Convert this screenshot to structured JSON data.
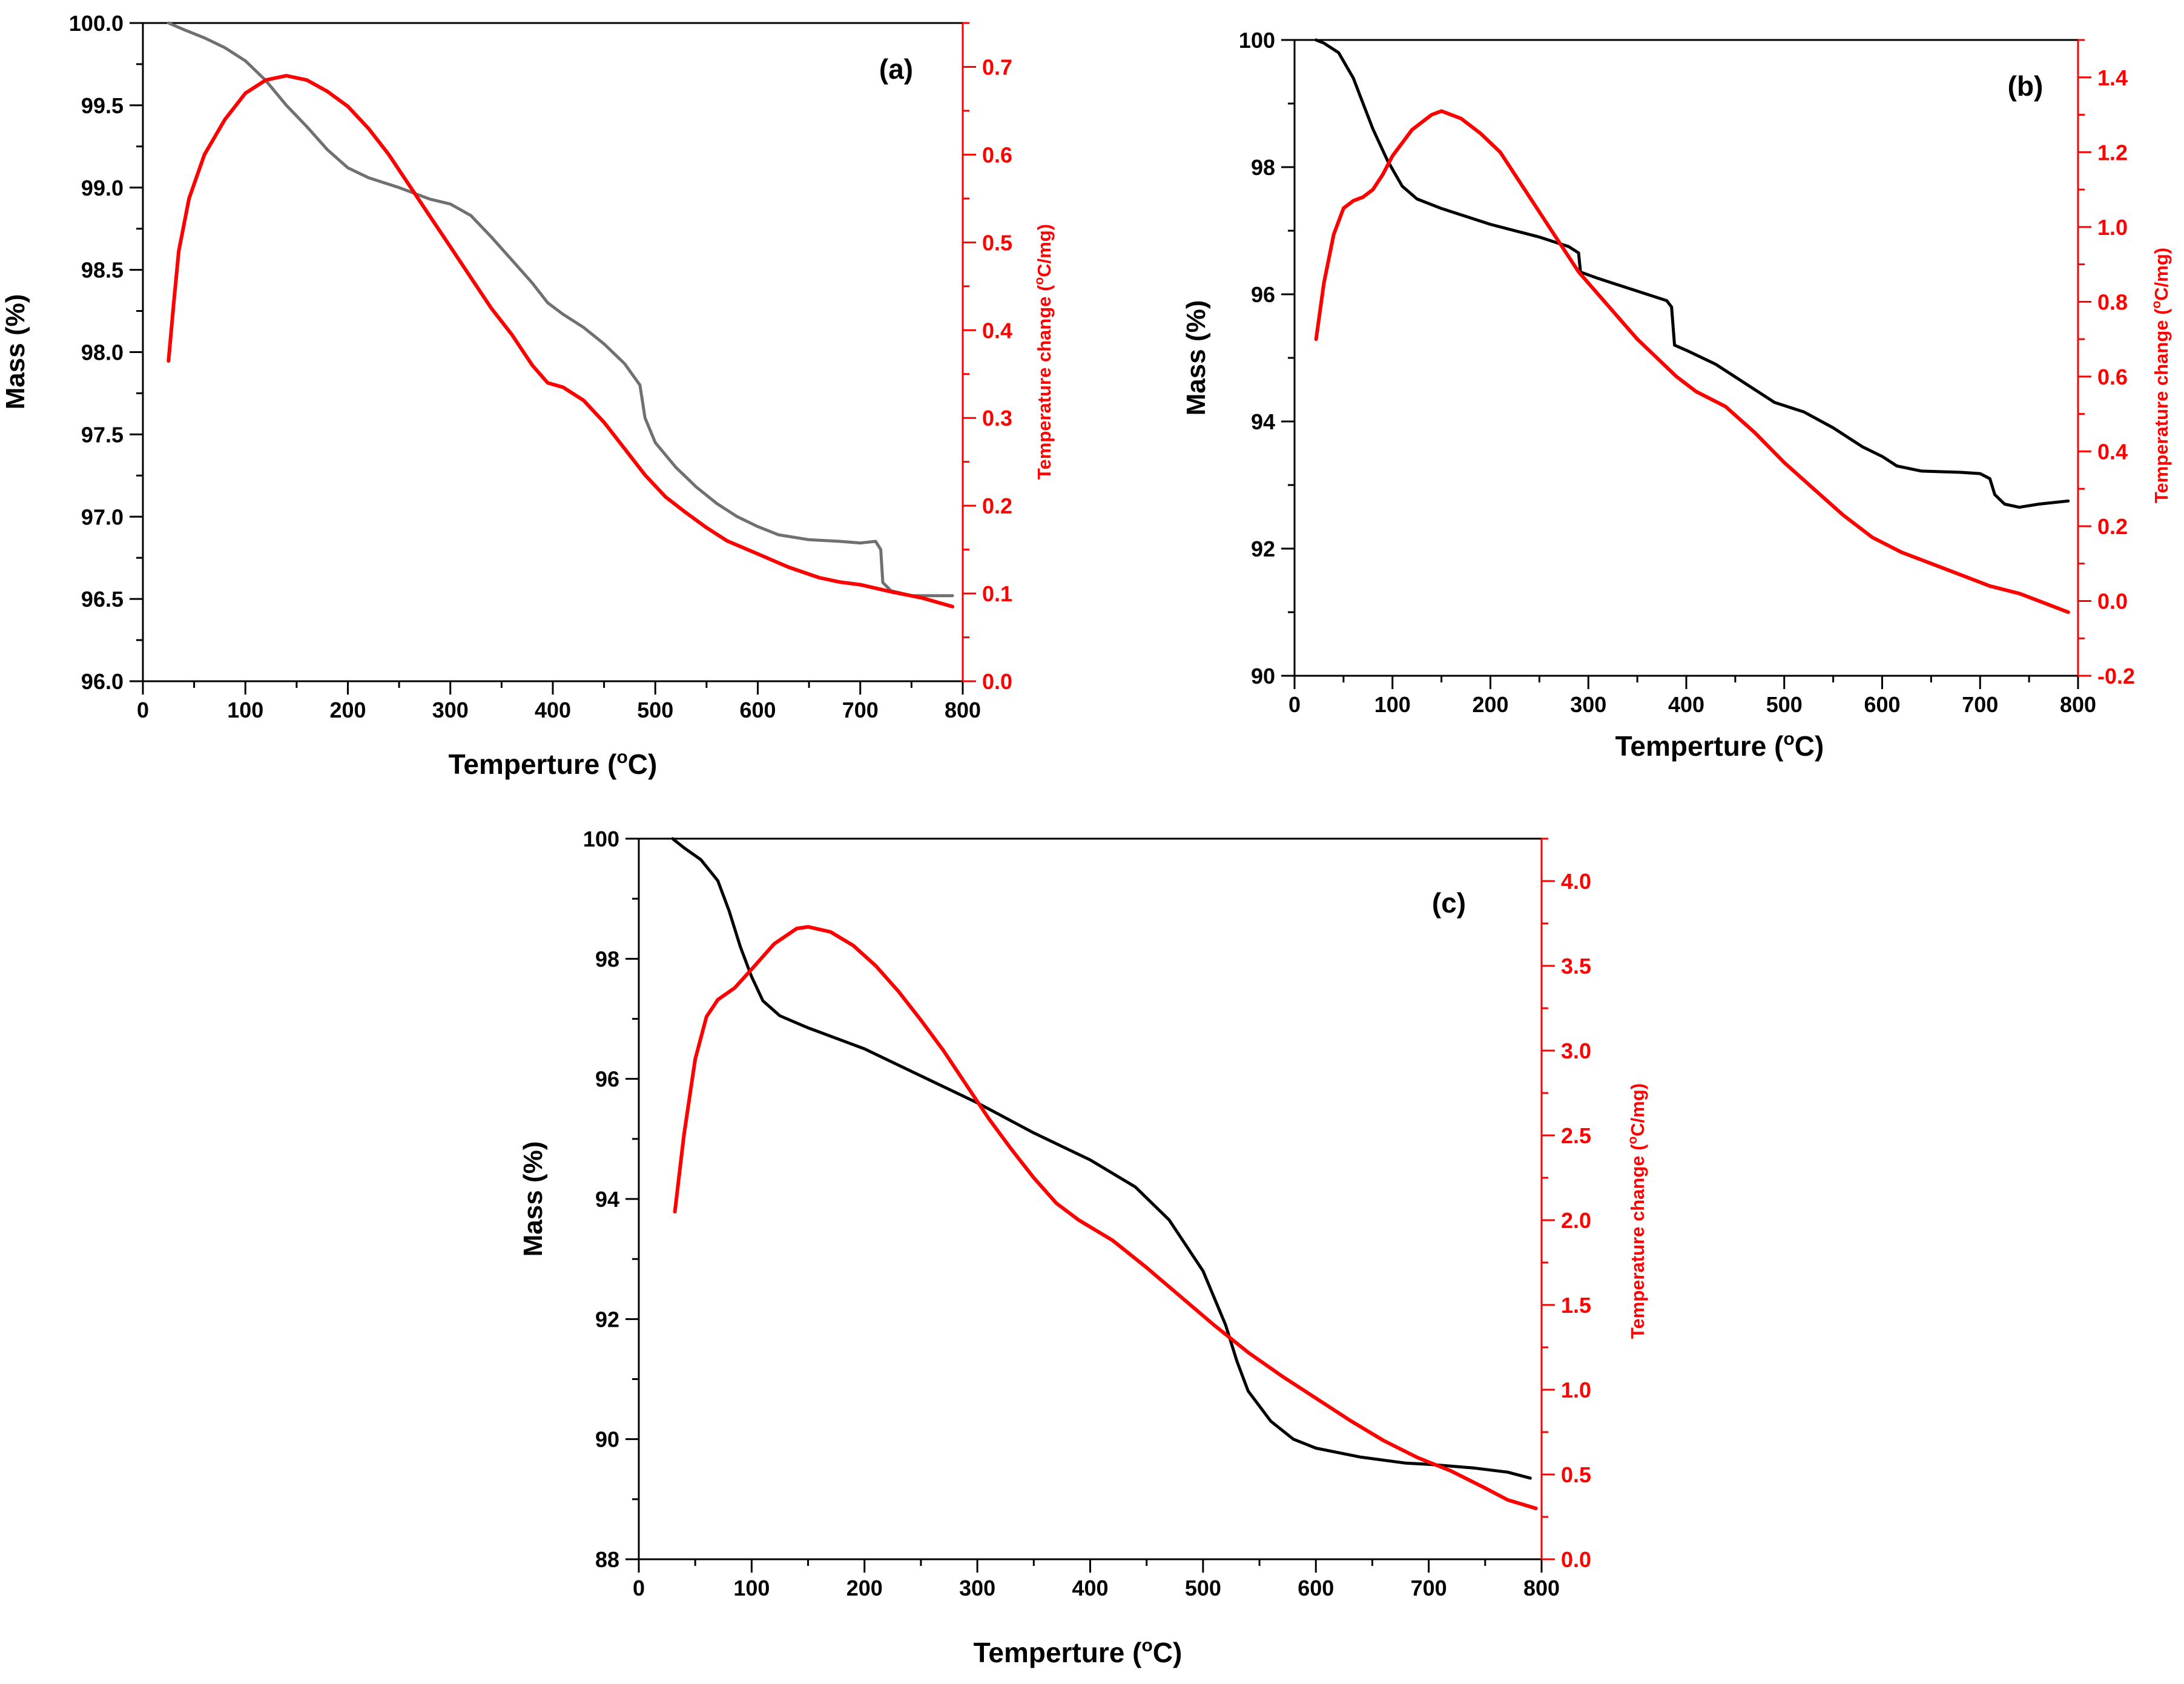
{
  "figure": {
    "title": ""
  },
  "chart_data": [
    {
      "type": "line",
      "panel_label": "(a)",
      "title": "",
      "xlabel": "Temperture (",
      "xlabel_sup": "o",
      "xlabel_end": "C)",
      "ylabel": "Mass (%)",
      "y2label": "Temperature change (",
      "y2label_sup": "o",
      "y2label_end": "C/mg)",
      "xlim": [
        0,
        800
      ],
      "ylim": [
        96.0,
        100.0
      ],
      "y2lim": [
        0.0,
        0.75
      ],
      "x_ticks": [
        "0",
        "100",
        "200",
        "300",
        "400",
        "500",
        "600",
        "700",
        "800"
      ],
      "y_ticks": [
        "96.0",
        "96.5",
        "97.0",
        "97.5",
        "98.0",
        "98.5",
        "99.0",
        "99.5",
        "100.0"
      ],
      "y2_ticks": [
        "0.0",
        "0.1",
        "0.2",
        "0.3",
        "0.4",
        "0.5",
        "0.6",
        "0.7"
      ],
      "grid": false,
      "series": [
        {
          "name": "Mass (%)",
          "axis": "left",
          "color": "#707070",
          "points": [
            [
              25,
              100.0
            ],
            [
              40,
              99.96
            ],
            [
              60,
              99.91
            ],
            [
              80,
              99.85
            ],
            [
              100,
              99.77
            ],
            [
              120,
              99.65
            ],
            [
              140,
              99.5
            ],
            [
              160,
              99.37
            ],
            [
              180,
              99.23
            ],
            [
              200,
              99.12
            ],
            [
              220,
              99.06
            ],
            [
              250,
              99.0
            ],
            [
              280,
              98.93
            ],
            [
              300,
              98.9
            ],
            [
              320,
              98.83
            ],
            [
              340,
              98.7
            ],
            [
              360,
              98.56
            ],
            [
              380,
              98.42
            ],
            [
              395,
              98.3
            ],
            [
              410,
              98.23
            ],
            [
              430,
              98.15
            ],
            [
              450,
              98.05
            ],
            [
              470,
              97.93
            ],
            [
              485,
              97.8
            ],
            [
              490,
              97.6
            ],
            [
              500,
              97.45
            ],
            [
              520,
              97.3
            ],
            [
              540,
              97.18
            ],
            [
              560,
              97.08
            ],
            [
              580,
              97.0
            ],
            [
              600,
              96.94
            ],
            [
              620,
              96.89
            ],
            [
              650,
              96.86
            ],
            [
              680,
              96.85
            ],
            [
              700,
              96.84
            ],
            [
              715,
              96.85
            ],
            [
              720,
              96.8
            ],
            [
              722,
              96.6
            ],
            [
              730,
              96.55
            ],
            [
              750,
              96.52
            ],
            [
              770,
              96.52
            ],
            [
              790,
              96.52
            ]
          ]
        },
        {
          "name": "Temperature change (oC/mg)",
          "axis": "right",
          "color": "#ff0000",
          "points": [
            [
              25,
              0.365
            ],
            [
              30,
              0.43
            ],
            [
              35,
              0.49
            ],
            [
              45,
              0.55
            ],
            [
              60,
              0.6
            ],
            [
              80,
              0.64
            ],
            [
              100,
              0.67
            ],
            [
              120,
              0.685
            ],
            [
              140,
              0.69
            ],
            [
              160,
              0.685
            ],
            [
              180,
              0.672
            ],
            [
              200,
              0.655
            ],
            [
              220,
              0.63
            ],
            [
              240,
              0.6
            ],
            [
              260,
              0.565
            ],
            [
              280,
              0.53
            ],
            [
              300,
              0.495
            ],
            [
              320,
              0.46
            ],
            [
              340,
              0.425
            ],
            [
              360,
              0.395
            ],
            [
              380,
              0.36
            ],
            [
              395,
              0.34
            ],
            [
              410,
              0.335
            ],
            [
              430,
              0.32
            ],
            [
              450,
              0.295
            ],
            [
              470,
              0.265
            ],
            [
              490,
              0.235
            ],
            [
              510,
              0.21
            ],
            [
              530,
              0.192
            ],
            [
              550,
              0.175
            ],
            [
              570,
              0.16
            ],
            [
              600,
              0.145
            ],
            [
              630,
              0.13
            ],
            [
              660,
              0.118
            ],
            [
              680,
              0.113
            ],
            [
              700,
              0.11
            ],
            [
              730,
              0.102
            ],
            [
              760,
              0.095
            ],
            [
              790,
              0.085
            ]
          ]
        }
      ]
    },
    {
      "type": "line",
      "panel_label": "(b)",
      "title": "",
      "xlabel": "Temperture (",
      "xlabel_sup": "o",
      "xlabel_end": "C)",
      "ylabel": "Mass (%)",
      "y2label": "Temperature change (",
      "y2label_sup": "o",
      "y2label_end": "C/mg)",
      "xlim": [
        0,
        800
      ],
      "ylim": [
        90,
        100
      ],
      "y2lim": [
        -0.2,
        1.5
      ],
      "x_ticks": [
        "0",
        "100",
        "200",
        "300",
        "400",
        "500",
        "600",
        "700",
        "800"
      ],
      "y_ticks": [
        "90",
        "92",
        "94",
        "96",
        "98",
        "100"
      ],
      "y2_ticks": [
        "-0.2",
        "0.0",
        "0.2",
        "0.4",
        "0.6",
        "0.8",
        "1.0",
        "1.2",
        "1.4"
      ],
      "grid": false,
      "series": [
        {
          "name": "Mass (%)",
          "axis": "left",
          "color": "#000000",
          "points": [
            [
              22,
              100.0
            ],
            [
              30,
              99.95
            ],
            [
              45,
              99.8
            ],
            [
              60,
              99.4
            ],
            [
              70,
              99.0
            ],
            [
              80,
              98.6
            ],
            [
              95,
              98.1
            ],
            [
              110,
              97.7
            ],
            [
              125,
              97.5
            ],
            [
              150,
              97.35
            ],
            [
              200,
              97.1
            ],
            [
              250,
              96.9
            ],
            [
              280,
              96.75
            ],
            [
              290,
              96.65
            ],
            [
              292,
              96.35
            ],
            [
              310,
              96.25
            ],
            [
              350,
              96.05
            ],
            [
              380,
              95.9
            ],
            [
              385,
              95.8
            ],
            [
              388,
              95.2
            ],
            [
              400,
              95.12
            ],
            [
              430,
              94.9
            ],
            [
              460,
              94.6
            ],
            [
              490,
              94.3
            ],
            [
              520,
              94.15
            ],
            [
              550,
              93.9
            ],
            [
              580,
              93.6
            ],
            [
              600,
              93.45
            ],
            [
              615,
              93.3
            ],
            [
              640,
              93.22
            ],
            [
              680,
              93.2
            ],
            [
              700,
              93.18
            ],
            [
              710,
              93.1
            ],
            [
              715,
              92.85
            ],
            [
              725,
              92.7
            ],
            [
              740,
              92.65
            ],
            [
              760,
              92.7
            ],
            [
              790,
              92.75
            ]
          ]
        },
        {
          "name": "Temperature change (oC/mg)",
          "axis": "right",
          "color": "#ff0000",
          "points": [
            [
              22,
              0.7
            ],
            [
              30,
              0.85
            ],
            [
              40,
              0.98
            ],
            [
              50,
              1.05
            ],
            [
              60,
              1.07
            ],
            [
              70,
              1.08
            ],
            [
              80,
              1.1
            ],
            [
              90,
              1.14
            ],
            [
              100,
              1.19
            ],
            [
              120,
              1.26
            ],
            [
              140,
              1.3
            ],
            [
              150,
              1.31
            ],
            [
              170,
              1.29
            ],
            [
              190,
              1.25
            ],
            [
              210,
              1.2
            ],
            [
              230,
              1.12
            ],
            [
              250,
              1.04
            ],
            [
              270,
              0.96
            ],
            [
              290,
              0.88
            ],
            [
              310,
              0.82
            ],
            [
              330,
              0.76
            ],
            [
              350,
              0.7
            ],
            [
              370,
              0.65
            ],
            [
              390,
              0.6
            ],
            [
              410,
              0.56
            ],
            [
              440,
              0.52
            ],
            [
              470,
              0.45
            ],
            [
              500,
              0.37
            ],
            [
              530,
              0.3
            ],
            [
              560,
              0.23
            ],
            [
              590,
              0.17
            ],
            [
              620,
              0.13
            ],
            [
              650,
              0.1
            ],
            [
              680,
              0.07
            ],
            [
              710,
              0.04
            ],
            [
              740,
              0.02
            ],
            [
              770,
              -0.01
            ],
            [
              790,
              -0.03
            ]
          ]
        }
      ]
    },
    {
      "type": "line",
      "panel_label": "(c)",
      "title": "",
      "xlabel": "Temperture (",
      "xlabel_sup": "o",
      "xlabel_end": "C)",
      "ylabel": "Mass (%)",
      "y2label": "Temperature change (",
      "y2label_sup": "o",
      "y2label_end": "C/mg)",
      "xlim": [
        0,
        800
      ],
      "ylim": [
        88,
        100
      ],
      "y2lim": [
        0.0,
        4.25
      ],
      "x_ticks": [
        "0",
        "100",
        "200",
        "300",
        "400",
        "500",
        "600",
        "700",
        "800"
      ],
      "y_ticks": [
        "88",
        "90",
        "92",
        "94",
        "96",
        "98",
        "100"
      ],
      "y2_ticks": [
        "0.0",
        "0.5",
        "1.0",
        "1.5",
        "2.0",
        "2.5",
        "3.0",
        "3.5",
        "4.0"
      ],
      "grid": false,
      "series": [
        {
          "name": "Mass (%)",
          "axis": "left",
          "color": "#000000",
          "points": [
            [
              30,
              100.0
            ],
            [
              40,
              99.85
            ],
            [
              55,
              99.65
            ],
            [
              70,
              99.3
            ],
            [
              80,
              98.8
            ],
            [
              90,
              98.2
            ],
            [
              100,
              97.7
            ],
            [
              110,
              97.3
            ],
            [
              125,
              97.05
            ],
            [
              150,
              96.85
            ],
            [
              200,
              96.5
            ],
            [
              250,
              96.05
            ],
            [
              300,
              95.6
            ],
            [
              350,
              95.1
            ],
            [
              400,
              94.65
            ],
            [
              440,
              94.2
            ],
            [
              470,
              93.65
            ],
            [
              500,
              92.8
            ],
            [
              520,
              91.9
            ],
            [
              530,
              91.3
            ],
            [
              540,
              90.8
            ],
            [
              560,
              90.3
            ],
            [
              580,
              90.0
            ],
            [
              600,
              89.85
            ],
            [
              640,
              89.7
            ],
            [
              680,
              89.6
            ],
            [
              700,
              89.58
            ],
            [
              740,
              89.52
            ],
            [
              770,
              89.45
            ],
            [
              790,
              89.35
            ]
          ]
        },
        {
          "name": "Temperature change (oC/mg)",
          "axis": "right",
          "color": "#ff0000",
          "points": [
            [
              32,
              2.05
            ],
            [
              40,
              2.5
            ],
            [
              50,
              2.95
            ],
            [
              60,
              3.2
            ],
            [
              70,
              3.3
            ],
            [
              85,
              3.37
            ],
            [
              100,
              3.48
            ],
            [
              120,
              3.63
            ],
            [
              140,
              3.72
            ],
            [
              150,
              3.73
            ],
            [
              170,
              3.7
            ],
            [
              190,
              3.62
            ],
            [
              210,
              3.5
            ],
            [
              230,
              3.35
            ],
            [
              250,
              3.18
            ],
            [
              270,
              3.0
            ],
            [
              290,
              2.8
            ],
            [
              310,
              2.6
            ],
            [
              330,
              2.42
            ],
            [
              350,
              2.25
            ],
            [
              370,
              2.1
            ],
            [
              390,
              2.0
            ],
            [
              420,
              1.88
            ],
            [
              450,
              1.72
            ],
            [
              480,
              1.55
            ],
            [
              510,
              1.38
            ],
            [
              540,
              1.22
            ],
            [
              570,
              1.08
            ],
            [
              600,
              0.95
            ],
            [
              630,
              0.82
            ],
            [
              660,
              0.7
            ],
            [
              690,
              0.6
            ],
            [
              720,
              0.52
            ],
            [
              750,
              0.42
            ],
            [
              770,
              0.35
            ],
            [
              795,
              0.3
            ]
          ]
        }
      ]
    }
  ]
}
